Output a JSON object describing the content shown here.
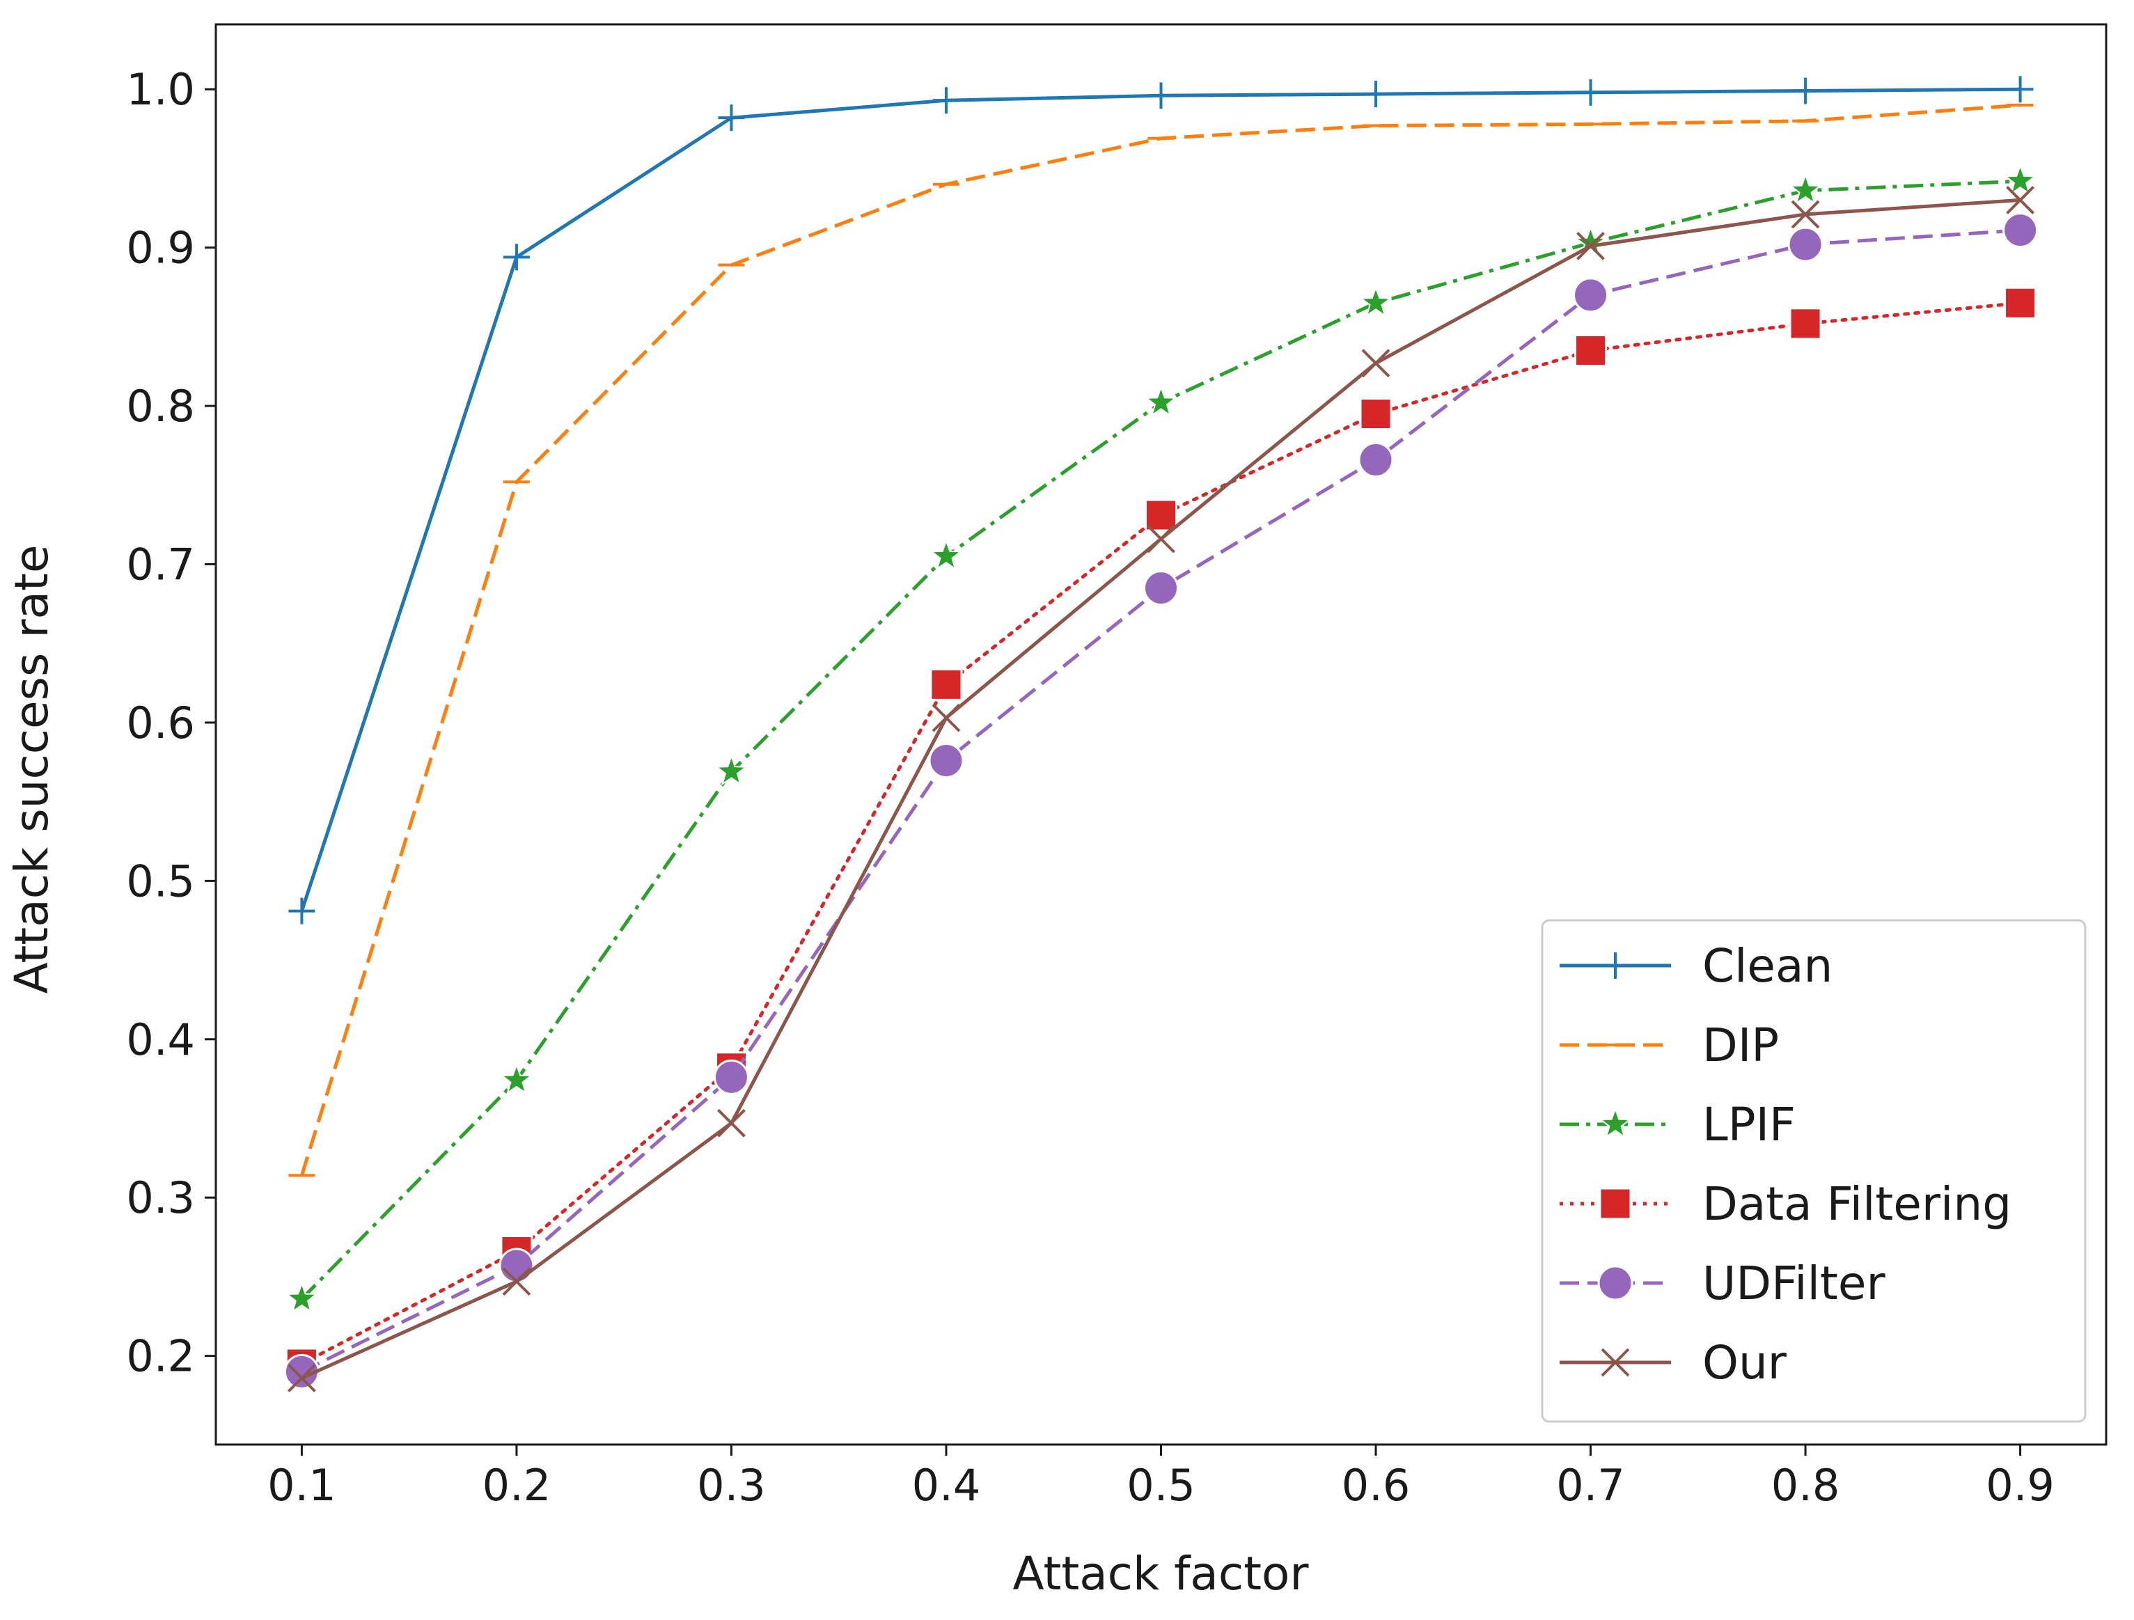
{
  "chart_data": {
    "type": "line",
    "title": "",
    "xlabel": "Attack factor",
    "ylabel": "Attack success rate",
    "x": [
      0.1,
      0.2,
      0.3,
      0.4,
      0.5,
      0.6,
      0.7,
      0.8,
      0.9
    ],
    "xlim": [
      0.06,
      0.94
    ],
    "ylim": [
      0.144,
      1.041
    ],
    "xticks": [
      "0.1",
      "0.2",
      "0.3",
      "0.4",
      "0.5",
      "0.6",
      "0.7",
      "0.8",
      "0.9"
    ],
    "yticks": [
      "0.2",
      "0.3",
      "0.4",
      "0.5",
      "0.6",
      "0.7",
      "0.8",
      "0.9",
      "1.0"
    ],
    "ytick_values": [
      0.2,
      0.3,
      0.4,
      0.5,
      0.6,
      0.7,
      0.8,
      0.9,
      1.0
    ],
    "grid": false,
    "legend_position": "bottom-right",
    "series": [
      {
        "name": "Clean",
        "color": "#1f77b4",
        "dash": "solid",
        "marker": "plus",
        "values": [
          0.481,
          0.894,
          0.982,
          0.993,
          0.996,
          0.997,
          0.998,
          0.999,
          1.0
        ]
      },
      {
        "name": "DIP",
        "color": "#ff7f0e",
        "dash": "dashed",
        "marker": "hline",
        "values": [
          0.314,
          0.752,
          0.889,
          0.94,
          0.969,
          0.977,
          0.978,
          0.98,
          0.99
        ]
      },
      {
        "name": "LPIF",
        "color": "#2ca02c",
        "dash": "dashdot",
        "marker": "star",
        "values": [
          0.236,
          0.374,
          0.569,
          0.705,
          0.802,
          0.865,
          0.903,
          0.936,
          0.942
        ]
      },
      {
        "name": "Data Filtering",
        "color": "#d62728",
        "dash": "dotted",
        "marker": "square",
        "values": [
          0.195,
          0.266,
          0.382,
          0.624,
          0.731,
          0.795,
          0.835,
          0.852,
          0.865
        ]
      },
      {
        "name": "UDFilter",
        "color": "#9467bd",
        "dash": "dashed",
        "marker": "circle",
        "values": [
          0.19,
          0.257,
          0.376,
          0.576,
          0.685,
          0.766,
          0.87,
          0.902,
          0.911
        ]
      },
      {
        "name": "Our",
        "color": "#8c564b",
        "dash": "solid",
        "marker": "x",
        "values": [
          0.186,
          0.247,
          0.347,
          0.603,
          0.716,
          0.827,
          0.901,
          0.921,
          0.93
        ]
      }
    ]
  }
}
